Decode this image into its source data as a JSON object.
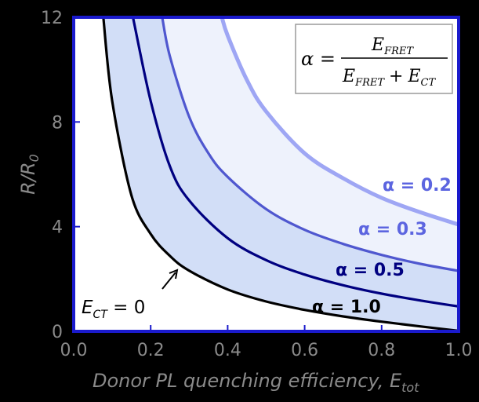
{
  "chart_data": {
    "type": "line",
    "xlabel": "Donor PL quenching efficiency, E",
    "xlabel_sub": "tot",
    "ylabel": "R/R",
    "ylabel_sub": "0",
    "xlim": [
      0.0,
      1.0
    ],
    "ylim": [
      0,
      12
    ],
    "xticks": [
      "0.0",
      "0.2",
      "0.4",
      "0.6",
      "0.8",
      "1.0"
    ],
    "yticks": [
      "0",
      "4",
      "8",
      "12"
    ],
    "grid": false,
    "series": [
      {
        "name": "α = 1.0",
        "alpha": 1.0,
        "color": "#000000",
        "label_color": "#000000",
        "x": [
          0.077,
          0.1,
          0.15,
          0.2,
          0.25,
          0.3,
          0.4,
          0.5,
          0.6,
          0.7,
          0.8,
          0.9,
          1.0
        ],
        "y": [
          12,
          8.8,
          5.2,
          3.72,
          2.88,
          2.32,
          1.6,
          1.14,
          0.82,
          0.57,
          0.37,
          0.19,
          0.02
        ]
      },
      {
        "name": "α = 0.5",
        "alpha": 0.5,
        "color": "#000080",
        "label_color": "#000080",
        "x": [
          0.154,
          0.2,
          0.25,
          0.3,
          0.4,
          0.5,
          0.6,
          0.7,
          0.8,
          0.9,
          1.0
        ],
        "y": [
          12,
          8.8,
          6.3,
          5.0,
          3.56,
          2.72,
          2.17,
          1.76,
          1.44,
          1.18,
          0.95
        ]
      },
      {
        "name": "α = 0.3",
        "alpha": 0.3,
        "color": "#4f57cf",
        "label_color": "#5c65e0",
        "x": [
          0.23,
          0.25,
          0.3,
          0.35,
          0.4,
          0.5,
          0.6,
          0.7,
          0.8,
          0.9,
          1.0
        ],
        "y": [
          12,
          10.5,
          8.2,
          6.8,
          5.9,
          4.67,
          3.88,
          3.34,
          2.92,
          2.58,
          2.31
        ]
      },
      {
        "name": "α = 0.2",
        "alpha": 0.2,
        "color": "#9ea6f4",
        "label_color": "#5c65e0",
        "x": [
          0.385,
          0.4,
          0.45,
          0.5,
          0.6,
          0.7,
          0.8,
          0.9,
          1.0
        ],
        "y": [
          12,
          11.3,
          9.6,
          8.4,
          6.8,
          5.85,
          5.1,
          4.55,
          4.08
        ]
      }
    ],
    "curve_labels": [
      "α = 0.2",
      "α = 0.3",
      "α = 0.5",
      "α = 1.0"
    ],
    "annotation": {
      "text": "E",
      "sub": "CT",
      "suffix": " = 0"
    },
    "equation": {
      "lhs": "α =",
      "numerator": "E",
      "numerator_sub": "FRET",
      "den_a": "E",
      "den_a_sub": "FRET",
      "plus": "+",
      "den_b": "E",
      "den_b_sub": "CT"
    },
    "colors": {
      "plot_background": "#ffffff",
      "frame": "#1a1acc",
      "fill_inner": "#d2def7",
      "fill_outer": "#eef2fc",
      "page_background": "#000000",
      "tick_label": "#8a8a8a"
    }
  }
}
